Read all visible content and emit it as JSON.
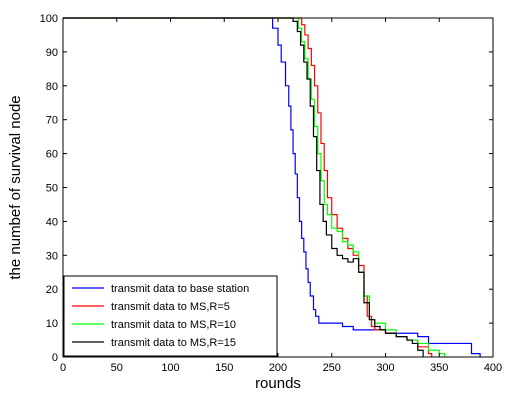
{
  "chart_data": {
    "type": "line",
    "title": "",
    "xlabel": "rounds",
    "ylabel": "the numbef of survival node",
    "xlim": [
      0,
      400
    ],
    "ylim": [
      0,
      100
    ],
    "xticks": [
      0,
      50,
      100,
      150,
      200,
      250,
      300,
      350,
      400
    ],
    "yticks": [
      0,
      10,
      20,
      30,
      40,
      50,
      60,
      70,
      80,
      90,
      100
    ],
    "grid": false,
    "legend_position": "bottom-left",
    "series": [
      {
        "name": "transmit data to base station",
        "color": "#0000ff",
        "style": "solid",
        "x": [
          0,
          190,
          195,
          200,
          203,
          207,
          210,
          212,
          214,
          216,
          218,
          220,
          222,
          224,
          226,
          228,
          230,
          233,
          235,
          238,
          240,
          245,
          250,
          260,
          270,
          300,
          330,
          340,
          380,
          388
        ],
        "y": [
          100,
          100,
          97,
          92,
          87,
          80,
          74,
          67,
          60,
          54,
          47,
          40,
          35,
          31,
          26,
          22,
          18,
          14,
          12,
          10,
          10,
          10,
          10,
          9,
          8,
          7,
          6,
          4,
          1,
          0
        ]
      },
      {
        "name": "transmit data to MS,R=5",
        "color": "#ff0000",
        "style": "solid",
        "x": [
          0,
          218,
          222,
          225,
          228,
          231,
          234,
          237,
          240,
          243,
          246,
          250,
          255,
          260,
          265,
          270,
          275,
          280,
          283,
          287,
          290,
          295,
          300,
          310,
          320,
          330,
          340,
          343
        ],
        "y": [
          100,
          100,
          98,
          95,
          91,
          86,
          80,
          72,
          63,
          55,
          47,
          42,
          38,
          35,
          32,
          30,
          27,
          18,
          12,
          9,
          8,
          8,
          7,
          6,
          5,
          3,
          1,
          0
        ]
      },
      {
        "name": "transmit data to MS,R=10",
        "color": "#00ff00",
        "style": "solid",
        "x": [
          0,
          215,
          219,
          222,
          225,
          228,
          231,
          234,
          237,
          240,
          243,
          246,
          250,
          255,
          260,
          265,
          270,
          275,
          280,
          285,
          290,
          300,
          310,
          320,
          330,
          340,
          350,
          355
        ],
        "y": [
          100,
          100,
          97,
          93,
          88,
          82,
          76,
          68,
          60,
          52,
          45,
          42,
          38,
          37,
          34,
          33,
          31,
          25,
          18,
          11,
          10,
          8,
          6,
          5,
          4,
          2,
          1,
          0
        ]
      },
      {
        "name": "transmit data to MS,R=15",
        "color": "#000000",
        "style": "solid",
        "x": [
          0,
          210,
          214,
          218,
          221,
          224,
          227,
          230,
          233,
          236,
          239,
          242,
          245,
          250,
          255,
          260,
          265,
          270,
          275,
          280,
          285,
          290,
          295,
          300,
          310,
          320,
          325,
          330,
          335
        ],
        "y": [
          100,
          100,
          99,
          96,
          92,
          87,
          82,
          74,
          65,
          55,
          45,
          40,
          36,
          32,
          30,
          29,
          28,
          29,
          25,
          16,
          11,
          9,
          8,
          7,
          6,
          5,
          4,
          2,
          0
        ]
      }
    ]
  }
}
